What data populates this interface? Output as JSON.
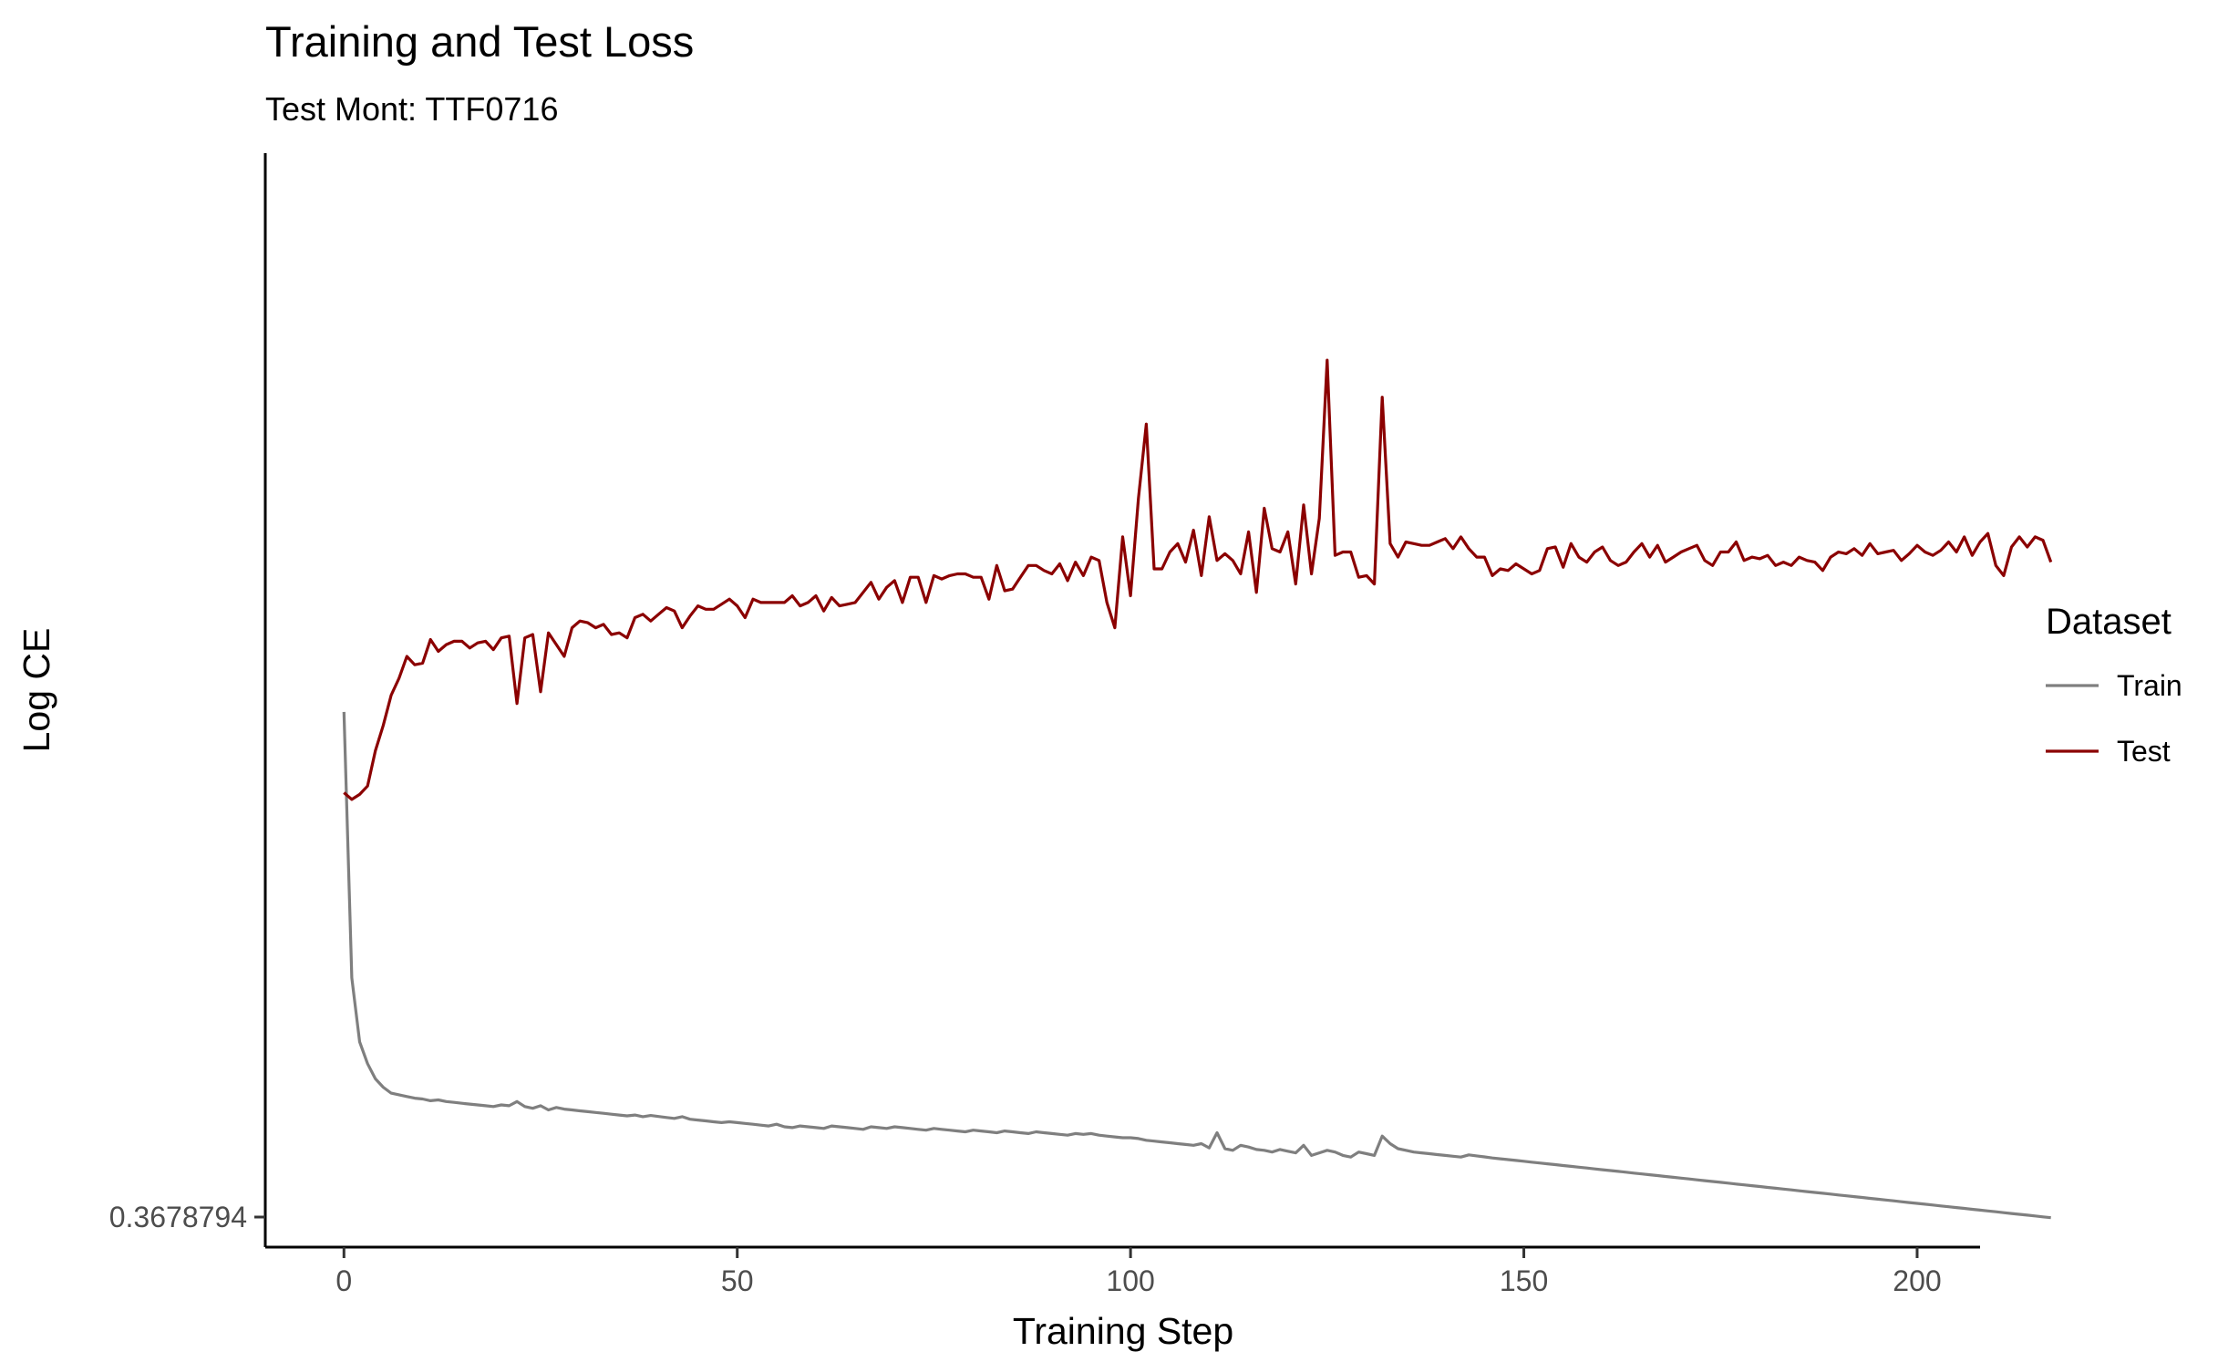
{
  "chart_data": {
    "type": "line",
    "title": "Training and Test Loss",
    "subtitle": "Test Mont: TTF0716",
    "xlabel": "Training Step",
    "ylabel": "Log CE",
    "x_ticks": [
      0,
      50,
      100,
      150,
      200
    ],
    "y_ticks": [
      0.3678794
    ],
    "y_tick_labels": [
      "0.3678794"
    ],
    "xlim": [
      -10,
      208
    ],
    "ylim": [
      0.35,
      1.0
    ],
    "grid": false,
    "legend": {
      "title": "Dataset",
      "position": "right"
    },
    "colors": {
      "Train": "#7f7f7f",
      "Test": "#8b0000"
    },
    "x_step": 1,
    "series": [
      {
        "name": "Train",
        "color": "#7f7f7f",
        "values": [
          0.668,
          0.51,
          0.472,
          0.459,
          0.45,
          0.445,
          0.4415,
          0.4405,
          0.4395,
          0.4385,
          0.438,
          0.437,
          0.4375,
          0.4365,
          0.436,
          0.4355,
          0.435,
          0.4345,
          0.434,
          0.4335,
          0.4345,
          0.434,
          0.4365,
          0.4335,
          0.4325,
          0.434,
          0.4315,
          0.433,
          0.432,
          0.4315,
          0.431,
          0.4305,
          0.43,
          0.4295,
          0.429,
          0.4285,
          0.428,
          0.4285,
          0.4275,
          0.4282,
          0.4276,
          0.427,
          0.4265,
          0.4275,
          0.426,
          0.4255,
          0.425,
          0.4245,
          0.424,
          0.4245,
          0.424,
          0.4235,
          0.423,
          0.4225,
          0.422,
          0.423,
          0.4215,
          0.421,
          0.422,
          0.4215,
          0.421,
          0.4205,
          0.422,
          0.4215,
          0.421,
          0.4205,
          0.42,
          0.4215,
          0.421,
          0.4205,
          0.4215,
          0.421,
          0.4205,
          0.42,
          0.4195,
          0.4205,
          0.42,
          0.4195,
          0.419,
          0.4185,
          0.4195,
          0.419,
          0.4185,
          0.418,
          0.419,
          0.4185,
          0.418,
          0.4175,
          0.4185,
          0.418,
          0.4175,
          0.417,
          0.4165,
          0.4175,
          0.417,
          0.4175,
          0.4165,
          0.416,
          0.4155,
          0.415,
          0.415,
          0.4145,
          0.4135,
          0.413,
          0.4125,
          0.412,
          0.4115,
          0.411,
          0.4105,
          0.4115,
          0.409,
          0.418,
          0.4085,
          0.4075,
          0.4105,
          0.4095,
          0.408,
          0.4075,
          0.4065,
          0.408,
          0.407,
          0.406,
          0.4105,
          0.4045,
          0.406,
          0.4075,
          0.4065,
          0.4045,
          0.4035,
          0.4065,
          0.4055,
          0.4045,
          0.416,
          0.4115,
          0.4085,
          0.4075,
          0.4065,
          0.406,
          0.4055,
          0.405,
          0.4045,
          0.404,
          0.4035,
          0.4048,
          0.4042,
          0.4036,
          0.403,
          0.4025,
          0.402,
          0.4015,
          0.401,
          0.4005,
          0.4,
          0.3995,
          0.399,
          0.3985,
          0.398,
          0.3975,
          0.397,
          0.3965,
          0.396,
          0.3955,
          0.395,
          0.3945,
          0.394,
          0.3935,
          0.393,
          0.3925,
          0.392,
          0.3915,
          0.391,
          0.3905,
          0.39,
          0.3895,
          0.389,
          0.3885,
          0.388,
          0.3875,
          0.387,
          0.3865,
          0.386,
          0.3855,
          0.385,
          0.3845,
          0.384,
          0.3835,
          0.383,
          0.3825,
          0.382,
          0.3815,
          0.381,
          0.3805,
          0.38,
          0.3795,
          0.379,
          0.3785,
          0.378,
          0.3775,
          0.377,
          0.3765,
          0.376,
          0.3755,
          0.375,
          0.3745,
          0.374,
          0.3735,
          0.373,
          0.3725,
          0.372,
          0.3715,
          0.371,
          0.3705,
          0.37,
          0.3695,
          0.369,
          0.3685,
          0.368,
          0.3675
        ]
      },
      {
        "name": "Test",
        "color": "#8b0000",
        "values": [
          0.62,
          0.616,
          0.619,
          0.624,
          0.645,
          0.66,
          0.678,
          0.688,
          0.701,
          0.696,
          0.697,
          0.711,
          0.704,
          0.708,
          0.71,
          0.71,
          0.706,
          0.709,
          0.71,
          0.705,
          0.712,
          0.713,
          0.673,
          0.712,
          0.714,
          0.68,
          0.715,
          0.708,
          0.701,
          0.718,
          0.722,
          0.721,
          0.718,
          0.72,
          0.714,
          0.715,
          0.712,
          0.724,
          0.726,
          0.722,
          0.726,
          0.73,
          0.728,
          0.718,
          0.725,
          0.731,
          0.729,
          0.729,
          0.732,
          0.735,
          0.731,
          0.724,
          0.735,
          0.733,
          0.733,
          0.733,
          0.733,
          0.737,
          0.731,
          0.733,
          0.737,
          0.728,
          0.736,
          0.731,
          0.732,
          0.733,
          0.739,
          0.745,
          0.735,
          0.742,
          0.746,
          0.733,
          0.748,
          0.748,
          0.733,
          0.749,
          0.747,
          0.749,
          0.75,
          0.75,
          0.748,
          0.748,
          0.735,
          0.755,
          0.74,
          0.741,
          0.748,
          0.755,
          0.755,
          0.752,
          0.75,
          0.756,
          0.746,
          0.757,
          0.749,
          0.76,
          0.758,
          0.733,
          0.718,
          0.772,
          0.737,
          0.795,
          0.839,
          0.753,
          0.753,
          0.763,
          0.768,
          0.757,
          0.776,
          0.749,
          0.784,
          0.758,
          0.762,
          0.758,
          0.75,
          0.775,
          0.739,
          0.789,
          0.765,
          0.763,
          0.775,
          0.744,
          0.791,
          0.75,
          0.783,
          0.877,
          0.761,
          0.763,
          0.763,
          0.748,
          0.749,
          0.744,
          0.855,
          0.768,
          0.76,
          0.769,
          0.768,
          0.767,
          0.767,
          0.769,
          0.771,
          0.765,
          0.772,
          0.765,
          0.76,
          0.76,
          0.749,
          0.753,
          0.752,
          0.756,
          0.753,
          0.75,
          0.752,
          0.765,
          0.766,
          0.754,
          0.768,
          0.76,
          0.757,
          0.763,
          0.766,
          0.758,
          0.755,
          0.757,
          0.763,
          0.768,
          0.76,
          0.767,
          0.757,
          0.76,
          0.763,
          0.765,
          0.767,
          0.758,
          0.755,
          0.763,
          0.763,
          0.769,
          0.758,
          0.76,
          0.759,
          0.761,
          0.755,
          0.757,
          0.755,
          0.76,
          0.758,
          0.757,
          0.752,
          0.76,
          0.763,
          0.762,
          0.765,
          0.761,
          0.768,
          0.762,
          0.763,
          0.764,
          0.758,
          0.762,
          0.767,
          0.763,
          0.761,
          0.764,
          0.769,
          0.763,
          0.772,
          0.761,
          0.769,
          0.774,
          0.755,
          0.749,
          0.766,
          0.772,
          0.766,
          0.772,
          0.77,
          0.757
        ]
      }
    ]
  }
}
